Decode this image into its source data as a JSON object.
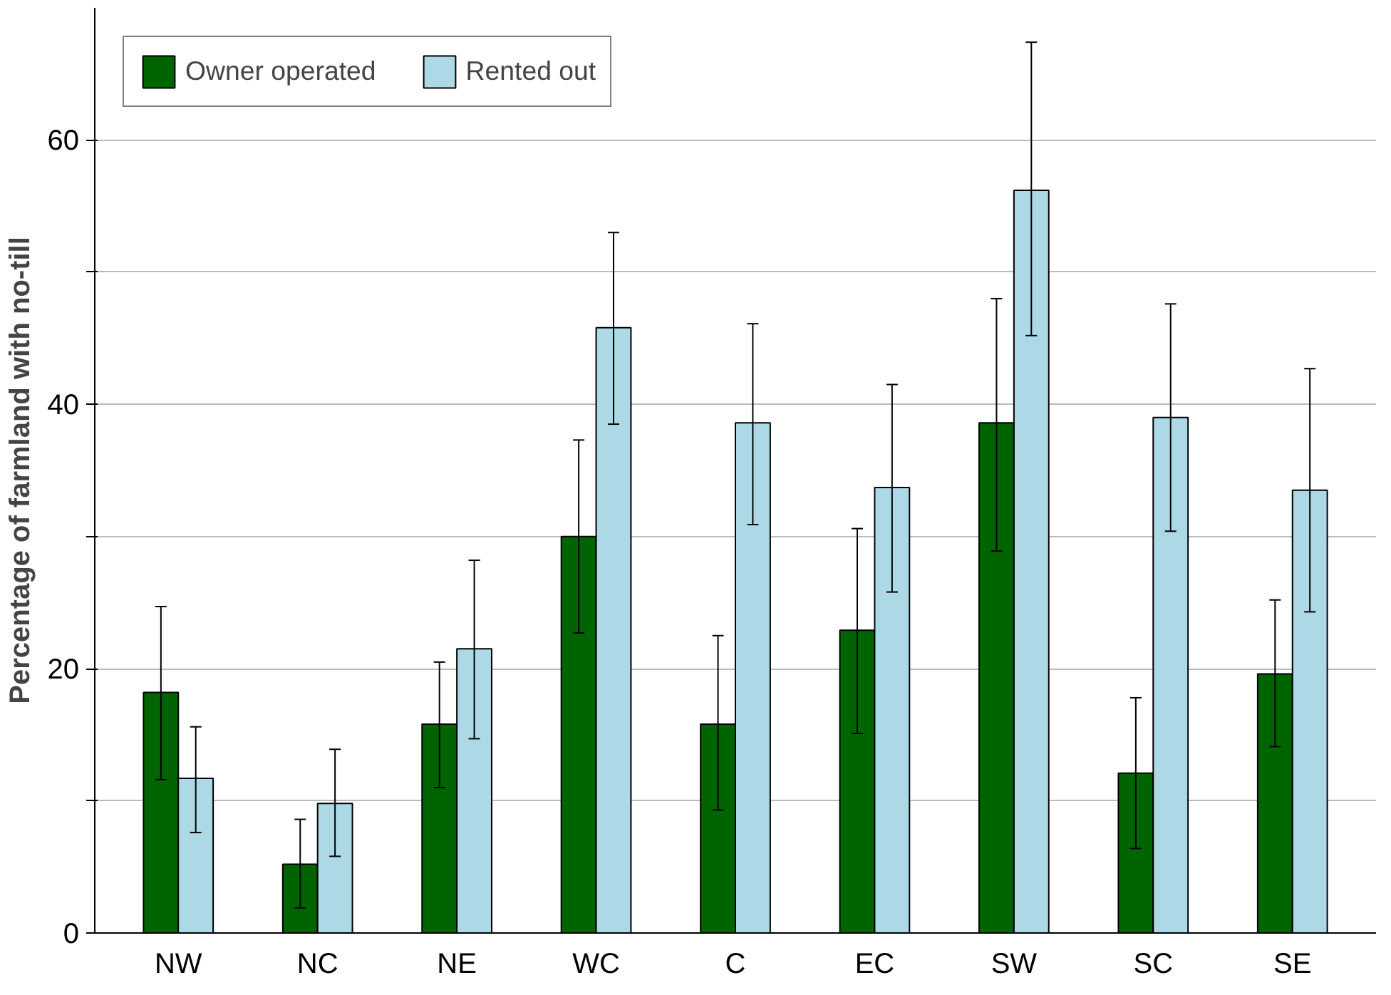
{
  "chart_data": {
    "type": "bar",
    "ylabel": "Percentage of farmland with no-till",
    "categories": [
      "NW",
      "NC",
      "NE",
      "WC",
      "C",
      "EC",
      "SW",
      "SC",
      "SE"
    ],
    "series": [
      {
        "name": "Owner operated",
        "color": "#006400",
        "values": [
          18.2,
          5.2,
          15.8,
          30.0,
          15.8,
          22.9,
          38.6,
          12.1,
          19.6
        ],
        "errors": [
          [
            11.6,
            24.7
          ],
          [
            1.9,
            8.6
          ],
          [
            11.0,
            20.5
          ],
          [
            22.7,
            37.3
          ],
          [
            9.3,
            22.5
          ],
          [
            15.1,
            30.6
          ],
          [
            28.9,
            48.0
          ],
          [
            6.4,
            17.8
          ],
          [
            14.1,
            25.2
          ]
        ]
      },
      {
        "name": "Rented out",
        "color": "#add8e6",
        "values": [
          11.7,
          9.8,
          21.5,
          45.8,
          38.6,
          33.7,
          56.2,
          39.0,
          33.5
        ],
        "errors": [
          [
            7.6,
            15.6
          ],
          [
            5.8,
            13.9
          ],
          [
            14.7,
            28.2
          ],
          [
            38.5,
            53.0
          ],
          [
            30.9,
            46.1
          ],
          [
            25.8,
            41.5
          ],
          [
            45.2,
            67.4
          ],
          [
            30.4,
            47.6
          ],
          [
            24.3,
            42.7
          ]
        ]
      }
    ],
    "ylim": [
      0,
      70
    ],
    "yticks": [
      0,
      {
        "value": 10,
        "label": null
      },
      20,
      {
        "value": 30,
        "label": null
      },
      40,
      {
        "value": 50,
        "label": null
      },
      60
    ],
    "grid": "y",
    "legend": "top left"
  }
}
